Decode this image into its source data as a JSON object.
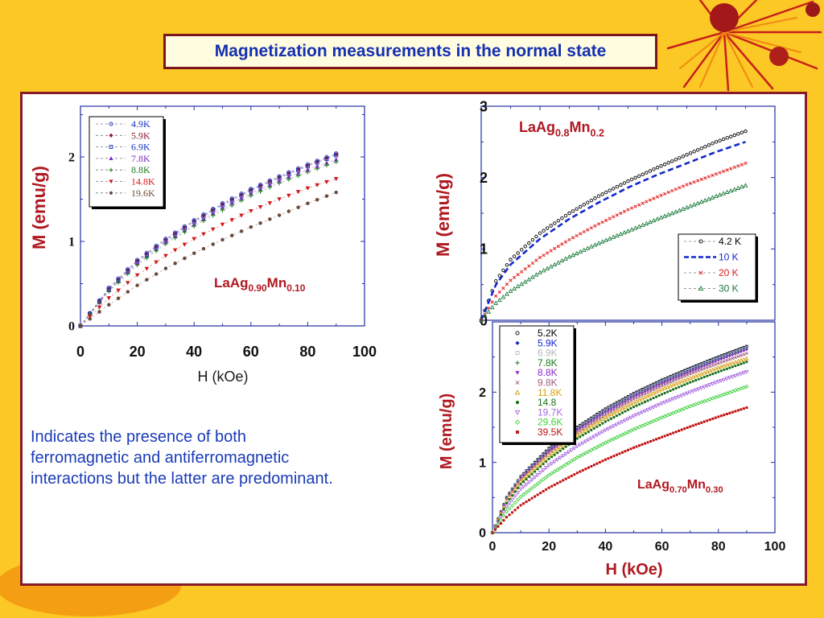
{
  "slide": {
    "title": "Magnetization measurements in the normal state",
    "note_lines": [
      "Indicates the presence of both",
      "ferromagnetic and antiferromagnetic",
      "interactions but the latter are predominant."
    ]
  },
  "colors": {
    "background": "#FBC825",
    "title_text": "#1530B0",
    "border": "#7A1520",
    "note_text": "#1A3BB8"
  },
  "chart_data": [
    {
      "type": "scatter",
      "title": "",
      "compound": [
        "LaAg",
        "0.90",
        "Mn",
        "0.10"
      ],
      "xlabel": "H   (kOe)",
      "ylabel": "M  (emu/g)",
      "xlim": [
        0,
        100
      ],
      "ylim": [
        0,
        2.6
      ],
      "xticks": [
        "0",
        "20",
        "40",
        "60",
        "80",
        "100"
      ],
      "yticks": [
        "0",
        "1",
        "2"
      ],
      "legend_position": "top-left",
      "grid": false,
      "series": [
        {
          "name": "4.9K",
          "color": "#1830C0",
          "marker": "circle-open",
          "dashed": true,
          "x": [
            0,
            10,
            20,
            30,
            40,
            50,
            60,
            70,
            80,
            90
          ],
          "y": [
            0,
            0.45,
            0.78,
            1.03,
            1.25,
            1.45,
            1.62,
            1.77,
            1.91,
            2.04
          ]
        },
        {
          "name": "5.9K",
          "color": "#8B1A2A",
          "marker": "diamond",
          "dashed": true,
          "x": [
            0,
            10,
            20,
            30,
            40,
            50,
            60,
            70,
            80,
            90
          ],
          "y": [
            0,
            0.44,
            0.77,
            1.02,
            1.24,
            1.44,
            1.61,
            1.76,
            1.9,
            2.03
          ]
        },
        {
          "name": "6.9K",
          "color": "#1830C0",
          "marker": "square-open",
          "dashed": true,
          "x": [
            0,
            10,
            20,
            30,
            40,
            50,
            60,
            70,
            80,
            90
          ],
          "y": [
            0,
            0.43,
            0.76,
            1.01,
            1.23,
            1.43,
            1.6,
            1.75,
            1.89,
            2.02
          ]
        },
        {
          "name": "7.8K",
          "color": "#7A2FC0",
          "marker": "triangle",
          "dashed": true,
          "x": [
            0,
            10,
            20,
            30,
            40,
            50,
            60,
            70,
            80,
            90
          ],
          "y": [
            0,
            0.42,
            0.74,
            0.99,
            1.2,
            1.4,
            1.57,
            1.72,
            1.85,
            1.97
          ]
        },
        {
          "name": "8.8K",
          "color": "#1A7A1A",
          "marker": "plus",
          "dashed": true,
          "x": [
            0,
            10,
            20,
            30,
            40,
            50,
            60,
            70,
            80,
            90
          ],
          "y": [
            0,
            0.41,
            0.72,
            0.97,
            1.18,
            1.37,
            1.54,
            1.69,
            1.82,
            1.94
          ]
        },
        {
          "name": "14.8K",
          "color": "#D01818",
          "marker": "triangle-down",
          "dashed": true,
          "x": [
            0,
            10,
            20,
            30,
            40,
            50,
            60,
            70,
            80,
            90
          ],
          "y": [
            0,
            0.33,
            0.6,
            0.83,
            1.03,
            1.2,
            1.36,
            1.5,
            1.63,
            1.74
          ]
        },
        {
          "name": "19.6K",
          "color": "#6B4A3A",
          "marker": "circle",
          "dashed": true,
          "x": [
            0,
            10,
            20,
            30,
            40,
            50,
            60,
            70,
            80,
            90
          ],
          "y": [
            0,
            0.25,
            0.48,
            0.68,
            0.86,
            1.02,
            1.17,
            1.31,
            1.45,
            1.58
          ]
        }
      ]
    },
    {
      "type": "scatter",
      "title": "",
      "compound": [
        "LaAg",
        "0.8",
        "Mn",
        "0.2"
      ],
      "xlabel": "",
      "ylabel": "M  (emu/g)",
      "xlim": [
        0,
        100
      ],
      "ylim": [
        0,
        3
      ],
      "xticks": [],
      "yticks": [
        "0",
        "1",
        "2",
        "3"
      ],
      "legend_position": "right",
      "grid": false,
      "series": [
        {
          "name": "4.2 K",
          "color": "#000000",
          "marker": "circle-open",
          "dashed": false,
          "x": [
            0,
            5,
            10,
            20,
            30,
            40,
            50,
            60,
            70,
            80,
            90
          ],
          "y": [
            0,
            0.55,
            0.85,
            1.22,
            1.5,
            1.74,
            1.95,
            2.14,
            2.32,
            2.5,
            2.65
          ]
        },
        {
          "name": "10 K",
          "color": "#1428C8",
          "marker": "none",
          "dashed": true,
          "x": [
            0,
            5,
            10,
            20,
            30,
            40,
            50,
            60,
            70,
            80,
            90
          ],
          "y": [
            0,
            0.5,
            0.78,
            1.14,
            1.42,
            1.65,
            1.86,
            2.04,
            2.2,
            2.36,
            2.5
          ]
        },
        {
          "name": "20 K",
          "color": "#E01A1A",
          "marker": "cross",
          "dashed": false,
          "x": [
            0,
            5,
            10,
            20,
            30,
            40,
            50,
            60,
            70,
            80,
            90
          ],
          "y": [
            0,
            0.34,
            0.56,
            0.88,
            1.13,
            1.35,
            1.55,
            1.73,
            1.9,
            2.05,
            2.2
          ]
        },
        {
          "name": "30 K",
          "color": "#1A7A3A",
          "marker": "triangle-open",
          "dashed": false,
          "x": [
            0,
            5,
            10,
            20,
            30,
            40,
            50,
            60,
            70,
            80,
            90
          ],
          "y": [
            0,
            0.24,
            0.41,
            0.67,
            0.89,
            1.08,
            1.25,
            1.42,
            1.58,
            1.74,
            1.89
          ]
        }
      ]
    },
    {
      "type": "scatter",
      "title": "",
      "compound": [
        "LaAg",
        "0.70",
        "Mn",
        "0.30"
      ],
      "xlabel": "H  (kOe)",
      "ylabel": "M (emu/g)",
      "xlim": [
        0,
        100
      ],
      "ylim": [
        0,
        3
      ],
      "xticks": [
        "0",
        "20",
        "40",
        "60",
        "80",
        "100"
      ],
      "yticks": [
        "0",
        "1",
        "2"
      ],
      "legend_position": "top-left",
      "grid": false,
      "series": [
        {
          "name": "5.2K",
          "color": "#000000",
          "marker": "circle-open",
          "x": [
            0,
            5,
            10,
            20,
            30,
            40,
            50,
            60,
            70,
            80,
            90
          ],
          "y": [
            0,
            0.5,
            0.8,
            1.2,
            1.5,
            1.76,
            1.98,
            2.17,
            2.34,
            2.5,
            2.65
          ]
        },
        {
          "name": "5.9K",
          "color": "#1428C8",
          "marker": "diamond",
          "x": [
            0,
            5,
            10,
            20,
            30,
            40,
            50,
            60,
            70,
            80,
            90
          ],
          "y": [
            0,
            0.5,
            0.8,
            1.19,
            1.49,
            1.75,
            1.97,
            2.16,
            2.33,
            2.49,
            2.64
          ]
        },
        {
          "name": "6.9K",
          "color": "#B8B8B8",
          "marker": "square-open",
          "x": [
            0,
            5,
            10,
            20,
            30,
            40,
            50,
            60,
            70,
            80,
            90
          ],
          "y": [
            0,
            0.49,
            0.79,
            1.18,
            1.48,
            1.74,
            1.96,
            2.15,
            2.32,
            2.48,
            2.63
          ]
        },
        {
          "name": "7.8K",
          "color": "#1A7A1A",
          "marker": "plus",
          "x": [
            0,
            5,
            10,
            20,
            30,
            40,
            50,
            60,
            70,
            80,
            90
          ],
          "y": [
            0,
            0.49,
            0.78,
            1.17,
            1.47,
            1.72,
            1.94,
            2.13,
            2.3,
            2.46,
            2.61
          ]
        },
        {
          "name": "8.8K",
          "color": "#8A2AC8",
          "marker": "triangle-down",
          "x": [
            0,
            5,
            10,
            20,
            30,
            40,
            50,
            60,
            70,
            80,
            90
          ],
          "y": [
            0,
            0.48,
            0.77,
            1.16,
            1.46,
            1.71,
            1.93,
            2.12,
            2.29,
            2.45,
            2.6
          ]
        },
        {
          "name": "9.8K",
          "color": "#A06080",
          "marker": "cross",
          "x": [
            0,
            5,
            10,
            20,
            30,
            40,
            50,
            60,
            70,
            80,
            90
          ],
          "y": [
            0,
            0.47,
            0.76,
            1.14,
            1.43,
            1.68,
            1.9,
            2.09,
            2.26,
            2.41,
            2.55
          ]
        },
        {
          "name": "11.8K",
          "color": "#D8A010",
          "marker": "triangle-open",
          "x": [
            0,
            5,
            10,
            20,
            30,
            40,
            50,
            60,
            70,
            80,
            90
          ],
          "y": [
            0,
            0.45,
            0.73,
            1.1,
            1.39,
            1.64,
            1.85,
            2.04,
            2.2,
            2.35,
            2.48
          ]
        },
        {
          "name": "14.8",
          "color": "#187018",
          "marker": "circle",
          "x": [
            0,
            5,
            10,
            20,
            30,
            40,
            50,
            60,
            70,
            80,
            90
          ],
          "y": [
            0,
            0.42,
            0.69,
            1.05,
            1.34,
            1.58,
            1.79,
            1.97,
            2.14,
            2.29,
            2.43
          ]
        },
        {
          "name": "19.7K",
          "color": "#A868E0",
          "marker": "triangle-down-open",
          "x": [
            0,
            5,
            10,
            20,
            30,
            40,
            50,
            60,
            70,
            80,
            90
          ],
          "y": [
            0,
            0.37,
            0.62,
            0.96,
            1.23,
            1.46,
            1.66,
            1.84,
            2.0,
            2.15,
            2.29
          ]
        },
        {
          "name": "29.6K",
          "color": "#40D040",
          "marker": "diamond-open",
          "x": [
            0,
            5,
            10,
            20,
            30,
            40,
            50,
            60,
            70,
            80,
            90
          ],
          "y": [
            0,
            0.3,
            0.51,
            0.82,
            1.07,
            1.28,
            1.47,
            1.64,
            1.8,
            1.94,
            2.08
          ]
        },
        {
          "name": "39.5K",
          "color": "#C01010",
          "marker": "square",
          "x": [
            0,
            5,
            10,
            20,
            30,
            40,
            50,
            60,
            70,
            80,
            90
          ],
          "y": [
            0,
            0.22,
            0.39,
            0.64,
            0.85,
            1.04,
            1.21,
            1.36,
            1.51,
            1.65,
            1.78
          ]
        }
      ]
    }
  ]
}
